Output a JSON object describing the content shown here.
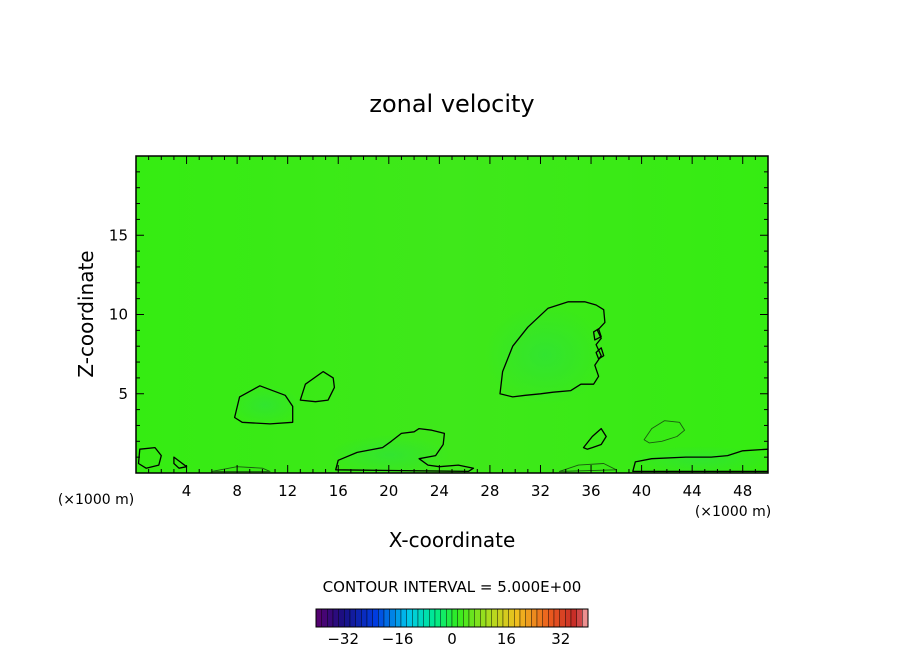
{
  "chart_data": {
    "type": "contour",
    "title": "zonal velocity",
    "xlabel": "X-coordinate",
    "ylabel": "Z-coordinate",
    "x_units": "(×1000 m)",
    "xlim": [
      0,
      50
    ],
    "ylim": [
      0,
      20
    ],
    "x_ticks": [
      4,
      8,
      12,
      16,
      20,
      24,
      28,
      32,
      36,
      40,
      44,
      48
    ],
    "y_ticks": [
      5,
      10,
      15
    ],
    "contour_interval_label": "CONTOUR INTERVAL = 5.000E+00",
    "contour_interval": 5.0,
    "colorbar": {
      "range": [
        -40,
        40
      ],
      "tick_values": [
        -32,
        -16,
        0,
        16,
        32
      ],
      "tick_labels": [
        "−32",
        "−16",
        "0",
        "16",
        "32"
      ]
    },
    "background_color": "#33ee11",
    "contours": [
      {
        "level": 5,
        "style": "solid",
        "points": [
          [
            0.3,
            1.5
          ],
          [
            1.5,
            1.6
          ],
          [
            2.0,
            1.1
          ],
          [
            1.8,
            0.5
          ],
          [
            0.8,
            0.3
          ],
          [
            0.2,
            0.6
          ]
        ]
      },
      {
        "level": 5,
        "style": "solid",
        "points": [
          [
            3.0,
            1.0
          ],
          [
            3.5,
            0.7
          ],
          [
            4.0,
            0.4
          ],
          [
            3.4,
            0.3
          ],
          [
            3.0,
            0.6
          ]
        ]
      },
      {
        "level": 5,
        "style": "solid",
        "points": [
          [
            7.8,
            3.5
          ],
          [
            8.2,
            4.8
          ],
          [
            9.8,
            5.5
          ],
          [
            11.8,
            4.9
          ],
          [
            12.4,
            4.2
          ],
          [
            12.4,
            3.2
          ],
          [
            10.6,
            3.1
          ],
          [
            8.4,
            3.2
          ]
        ]
      },
      {
        "level": 5,
        "style": "solid",
        "points": [
          [
            13.0,
            4.6
          ],
          [
            13.4,
            5.6
          ],
          [
            14.8,
            6.4
          ],
          [
            15.6,
            6.0
          ],
          [
            15.7,
            5.4
          ],
          [
            15.2,
            4.6
          ],
          [
            14.2,
            4.5
          ]
        ]
      },
      {
        "level": 5,
        "style": "solid",
        "points": [
          [
            15.8,
            0.2
          ],
          [
            16.0,
            0.8
          ],
          [
            17.5,
            1.3
          ],
          [
            19.5,
            1.6
          ],
          [
            20.2,
            2.0
          ],
          [
            21.0,
            2.5
          ],
          [
            22.0,
            2.6
          ],
          [
            22.4,
            2.8
          ],
          [
            23.4,
            2.7
          ],
          [
            24.4,
            2.5
          ],
          [
            24.3,
            1.8
          ],
          [
            23.7,
            1.1
          ],
          [
            22.4,
            0.9
          ],
          [
            23.1,
            0.5
          ],
          [
            24.0,
            0.4
          ],
          [
            25.5,
            0.5
          ],
          [
            26.7,
            0.3
          ],
          [
            26.3,
            0.1
          ]
        ]
      },
      {
        "level": 5,
        "style": "solid",
        "points": [
          [
            28.8,
            5.0
          ],
          [
            29.0,
            6.4
          ],
          [
            29.8,
            8.0
          ],
          [
            31.0,
            9.2
          ],
          [
            32.6,
            10.4
          ],
          [
            34.2,
            10.8
          ],
          [
            35.5,
            10.8
          ],
          [
            36.4,
            10.6
          ],
          [
            37.0,
            10.3
          ],
          [
            37.1,
            9.5
          ],
          [
            36.5,
            9.0
          ],
          [
            36.8,
            8.5
          ],
          [
            36.4,
            8.1
          ],
          [
            36.8,
            7.4
          ],
          [
            36.3,
            6.8
          ],
          [
            36.6,
            6.1
          ],
          [
            36.2,
            5.6
          ],
          [
            35.2,
            5.6
          ],
          [
            34.4,
            5.2
          ],
          [
            33.0,
            5.1
          ],
          [
            32.0,
            5.0
          ],
          [
            30.8,
            4.9
          ],
          [
            29.8,
            4.8
          ]
        ]
      },
      {
        "level": 5,
        "style": "solid",
        "points": [
          [
            35.4,
            1.6
          ],
          [
            36.1,
            2.3
          ],
          [
            36.8,
            2.8
          ],
          [
            37.2,
            2.3
          ],
          [
            36.8,
            1.8
          ],
          [
            36.1,
            1.6
          ],
          [
            35.7,
            1.5
          ]
        ]
      },
      {
        "level": 5,
        "style": "solid",
        "points": [
          [
            36.2,
            8.9
          ],
          [
            36.6,
            9.1
          ],
          [
            36.8,
            8.6
          ],
          [
            36.3,
            8.4
          ]
        ]
      },
      {
        "level": 5,
        "style": "solid",
        "points": [
          [
            36.4,
            7.6
          ],
          [
            36.8,
            7.9
          ],
          [
            37.0,
            7.4
          ],
          [
            36.6,
            7.2
          ]
        ]
      },
      {
        "level": 5,
        "style": "solid",
        "points": [
          [
            39.3,
            0.1
          ],
          [
            39.5,
            0.7
          ],
          [
            40.8,
            0.9
          ],
          [
            43.5,
            1.0
          ],
          [
            45.5,
            1.0
          ],
          [
            46.8,
            1.1
          ],
          [
            48.0,
            1.4
          ],
          [
            50.0,
            1.5
          ],
          [
            50.0,
            0.1
          ]
        ]
      },
      {
        "level": 10,
        "style": "thin",
        "points": [
          [
            40.2,
            2.1
          ],
          [
            40.8,
            2.8
          ],
          [
            41.8,
            3.3
          ],
          [
            43.0,
            3.2
          ],
          [
            43.4,
            2.7
          ],
          [
            42.8,
            2.3
          ],
          [
            41.6,
            2.0
          ],
          [
            40.6,
            1.9
          ]
        ]
      },
      {
        "level": 10,
        "style": "thin",
        "points": [
          [
            6.0,
            0.1
          ],
          [
            8.0,
            0.4
          ],
          [
            10.0,
            0.3
          ],
          [
            10.6,
            0.1
          ]
        ]
      },
      {
        "level": 10,
        "style": "thin",
        "points": [
          [
            33.5,
            0.1
          ],
          [
            35.0,
            0.5
          ],
          [
            37.0,
            0.6
          ],
          [
            38.0,
            0.2
          ]
        ]
      }
    ]
  }
}
